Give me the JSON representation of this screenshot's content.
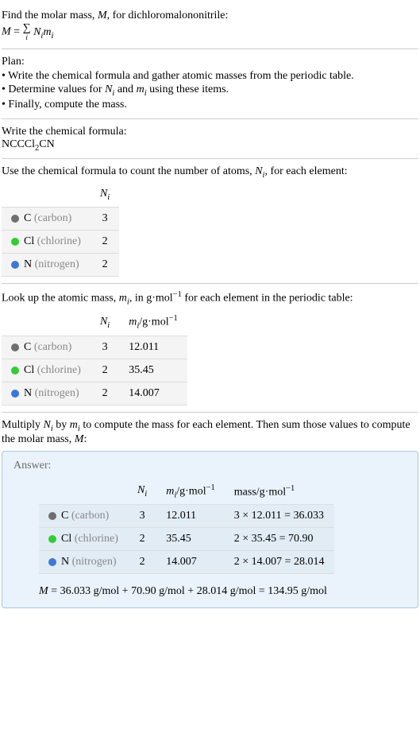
{
  "intro": {
    "line1_a": "Find the molar mass, ",
    "line1_m": "M",
    "line1_b": ", for dichloromalononitrile:",
    "eq_M": "M",
    "eq_eqsign": " = ",
    "eq_sigma": "∑",
    "eq_sigma_sub": "i",
    "eq_Ni": "N",
    "eq_Ni_sub": "i",
    "eq_mi": "m",
    "eq_mi_sub": "i"
  },
  "plan": {
    "heading": "Plan:",
    "items": [
      "• Write the chemical formula and gather atomic masses from the periodic table.",
      "• Determine values for N_i and m_i using these items.",
      "• Finally, compute the mass."
    ],
    "item2_a": "• Determine values for ",
    "item2_N": "N",
    "item2_Nsub": "i",
    "item2_b": " and ",
    "item2_m": "m",
    "item2_msub": "i",
    "item2_c": " using these items."
  },
  "chemformula": {
    "heading": "Write the chemical formula:",
    "formula_a": "NCCCl",
    "formula_sub": "2",
    "formula_b": "CN"
  },
  "count": {
    "text_a": "Use the chemical formula to count the number of atoms, ",
    "text_N": "N",
    "text_Nsub": "i",
    "text_b": ", for each element:",
    "header_N": "N",
    "header_Nsub": "i",
    "rows": [
      {
        "color": "#6f6f6f",
        "sym": "C",
        "name": " (carbon)",
        "n": "3"
      },
      {
        "color": "#33cc33",
        "sym": "Cl",
        "name": " (chlorine)",
        "n": "2"
      },
      {
        "color": "#3c78d8",
        "sym": "N",
        "name": " (nitrogen)",
        "n": "2"
      }
    ]
  },
  "mass": {
    "text_a": "Look up the atomic mass, ",
    "text_m": "m",
    "text_msub": "i",
    "text_b": ", in g·mol",
    "text_sup": "−1",
    "text_c": " for each element in the periodic table:",
    "header_N": "N",
    "header_Nsub": "i",
    "header_m": "m",
    "header_msub": "i",
    "header_unit_a": "/g·mol",
    "header_unit_sup": "−1",
    "rows": [
      {
        "color": "#6f6f6f",
        "sym": "C",
        "name": " (carbon)",
        "n": "3",
        "m": "12.011"
      },
      {
        "color": "#33cc33",
        "sym": "Cl",
        "name": " (chlorine)",
        "n": "2",
        "m": "35.45"
      },
      {
        "color": "#3c78d8",
        "sym": "N",
        "name": " (nitrogen)",
        "n": "2",
        "m": "14.007"
      }
    ]
  },
  "compute": {
    "text_a": "Multiply ",
    "text_N": "N",
    "text_Nsub": "i",
    "text_b": " by ",
    "text_m": "m",
    "text_msub": "i",
    "text_c": " to compute the mass for each element. Then sum those values to compute the molar mass, ",
    "text_M": "M",
    "text_d": ":"
  },
  "answer": {
    "label": "Answer:",
    "header_N": "N",
    "header_Nsub": "i",
    "header_m": "m",
    "header_msub": "i",
    "header_munit_a": "/g·mol",
    "header_munit_sup": "−1",
    "header_mass_a": "mass/g·mol",
    "header_mass_sup": "−1",
    "rows": [
      {
        "color": "#6f6f6f",
        "sym": "C",
        "name": " (carbon)",
        "n": "3",
        "m": "12.011",
        "calc": "3 × 12.011 = 36.033"
      },
      {
        "color": "#33cc33",
        "sym": "Cl",
        "name": " (chlorine)",
        "n": "2",
        "m": "35.45",
        "calc": "2 × 35.45 = 70.90"
      },
      {
        "color": "#3c78d8",
        "sym": "N",
        "name": " (nitrogen)",
        "n": "2",
        "m": "14.007",
        "calc": "2 × 14.007 = 28.014"
      }
    ],
    "final_M": "M",
    "final_rest": " = 36.033 g/mol + 70.90 g/mol + 28.014 g/mol = 134.95 g/mol"
  }
}
